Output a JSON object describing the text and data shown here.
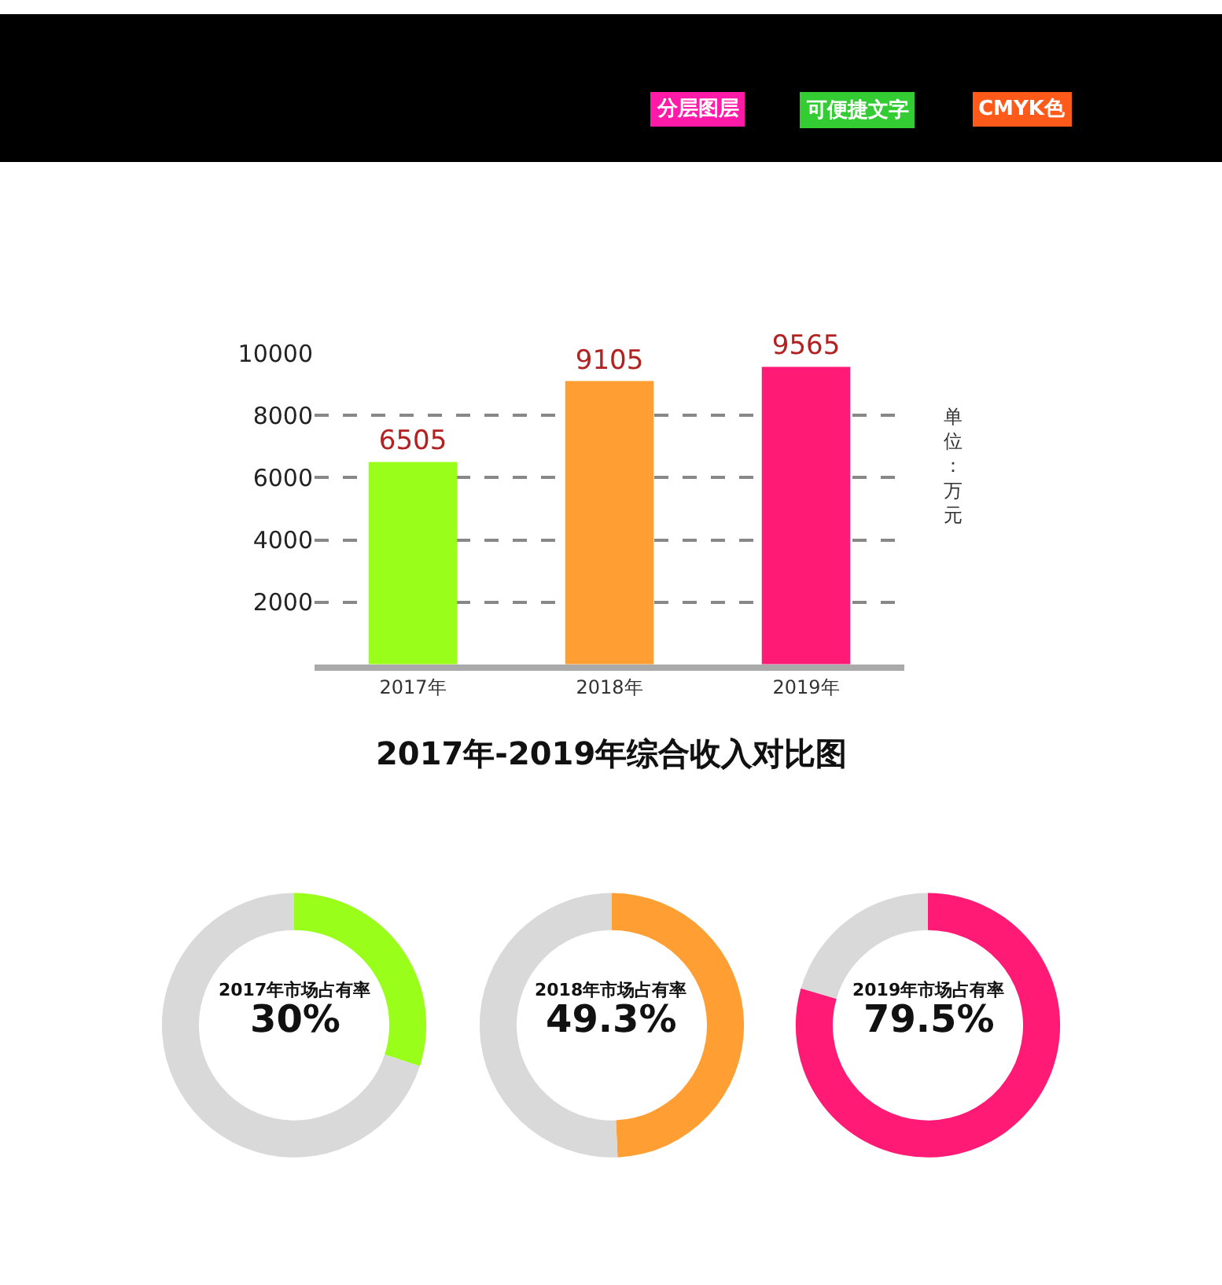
{
  "chart_data": [
    {
      "type": "other",
      "annotations": [
        "分层图层",
        "可便捷文字",
        "CMYK色"
      ]
    },
    {
      "type": "bar",
      "title": "2017年-2019年综合收入对比图",
      "categories": [
        "2017年",
        "2018年",
        "2019年"
      ],
      "values": [
        6505,
        9105,
        9565
      ],
      "colors": [
        "#99ff1a",
        "#ff9f33",
        "#ff1a75"
      ],
      "ylim": [
        0,
        10000
      ],
      "yticks": [
        2000,
        4000,
        6000,
        8000,
        10000
      ],
      "grid": "y",
      "data_labels": true,
      "annotations": [
        "单位：万元"
      ]
    },
    {
      "type": "donut",
      "title": "2017年市场占有率",
      "categories": [
        null,
        null
      ],
      "values": [
        30,
        70
      ],
      "colors": [
        "#99ff1a",
        "#d9d9d9"
      ],
      "value_labels": [
        "30%",
        null
      ]
    },
    {
      "type": "donut",
      "title": "2018年市场占有率",
      "categories": [
        null,
        null
      ],
      "values": [
        49.3,
        50.7
      ],
      "colors": [
        "#ff9f33",
        "#d9d9d9"
      ],
      "value_labels": [
        "49.3%",
        null
      ]
    },
    {
      "type": "donut",
      "title": "2019年市场占有率",
      "categories": [
        null,
        null
      ],
      "values": [
        79.5,
        20.5
      ],
      "colors": [
        "#ff1a75",
        "#d9d9d9"
      ],
      "value_labels": [
        "79.5%",
        null
      ]
    }
  ]
}
